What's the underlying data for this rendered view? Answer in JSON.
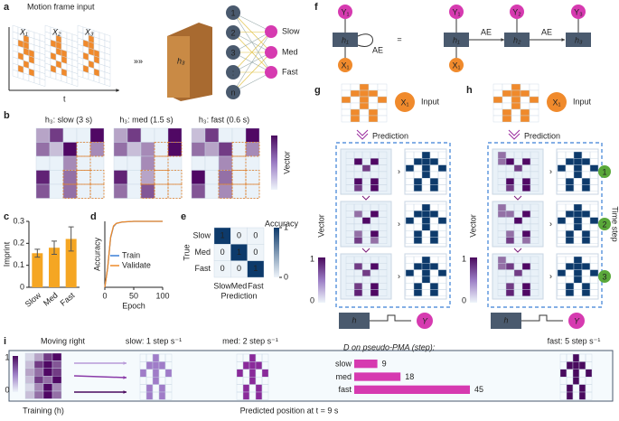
{
  "panels": {
    "a": {
      "label": "a",
      "title": "Motion frame input",
      "frames": [
        "X₁",
        "X₂",
        "X₃"
      ],
      "time_axis": "t",
      "hidden_state": "h₃",
      "nodes": [
        "1",
        "2",
        "3",
        ":",
        "n"
      ],
      "outputs": [
        "Slow",
        "Med",
        "Fast"
      ]
    },
    "b": {
      "label": "b",
      "titles": [
        "h₃: slow (3 s)",
        "h₃: med (1.5 s)",
        "h₃: fast (0.6 s)"
      ],
      "colorbar": "Vector"
    },
    "f": {
      "label": "f",
      "loop": {
        "output": "Y₁",
        "hidden": "h₁",
        "input": "X₁",
        "edge": "AE"
      },
      "equals": "=",
      "unrolled": {
        "outputs": [
          "Y₁",
          "Y₂",
          "Y₃"
        ],
        "hidden": [
          "h₁",
          "h₂",
          "h₃"
        ],
        "input": "X₁",
        "edges": [
          "AE",
          "AE"
        ]
      }
    },
    "g": {
      "label": "g",
      "input_symbol": "X₁",
      "input": "Input",
      "prediction": "Prediction",
      "colorbar": "Vector",
      "colorbar_ticks": [
        "1",
        "0"
      ],
      "readout": [
        "h",
        "Y"
      ]
    },
    "h": {
      "label": "h",
      "input_symbol": "X₁",
      "input": "Input",
      "prediction": "Prediction",
      "colorbar": "Vector",
      "colorbar_ticks": [
        "1",
        "0"
      ],
      "readout": [
        "h",
        "Y"
      ],
      "steps": [
        "1",
        "2",
        "3"
      ],
      "steps_label": "Time step"
    },
    "i": {
      "label": "i",
      "moving": "Moving right",
      "training": "Training (h)",
      "speeds": [
        "slow: 1 step s⁻¹",
        "med: 2 step s⁻¹",
        "fast: 5 step s⁻¹"
      ],
      "footer": "Predicted position at t = 9 s",
      "colorbar_ticks": [
        "1",
        "0"
      ]
    }
  },
  "chart_data": [
    {
      "type": "bar",
      "label": "c",
      "ylabel": "Imprint",
      "categories": [
        "Slow",
        "Med",
        "Fast"
      ],
      "values": [
        0.155,
        0.18,
        0.22
      ],
      "errors": [
        0.018,
        0.03,
        0.055
      ],
      "color": "#f5a623",
      "ylim": [
        0,
        0.3
      ],
      "yticks": [
        0,
        0.1,
        0.2,
        0.3
      ]
    },
    {
      "type": "line",
      "label": "d",
      "xlabel": "Epoch",
      "ylabel": "Accuracy",
      "x": [
        0,
        5,
        10,
        15,
        20,
        30,
        50,
        100
      ],
      "series": [
        {
          "name": "Train",
          "color": "#3a7fd5",
          "values": [
            0,
            0.3,
            0.75,
            0.92,
            0.97,
            0.99,
            1,
            1
          ]
        },
        {
          "name": "Validate",
          "color": "#ee8a2a",
          "values": [
            0,
            0.3,
            0.76,
            0.93,
            0.97,
            0.99,
            1,
            1
          ]
        }
      ],
      "xlim": [
        0,
        100
      ],
      "xticks": [
        0,
        50,
        100
      ],
      "ylim": [
        0,
        1
      ]
    },
    {
      "type": "heatmap",
      "label": "e",
      "ylabel": "True",
      "xlabel": "Prediction",
      "categories": [
        "Slow",
        "Med",
        "Fast"
      ],
      "values": [
        [
          1,
          0,
          0
        ],
        [
          0,
          1,
          0
        ],
        [
          0,
          0,
          1
        ]
      ],
      "colorbar_label": "Accuracy",
      "colorbar_ticks": [
        0,
        1
      ]
    },
    {
      "type": "bar",
      "orientation": "horizontal",
      "title": "D on pseudo-PMA (step):",
      "categories": [
        "slow",
        "med",
        "fast"
      ],
      "values": [
        9,
        18,
        45
      ],
      "color": "#d63ab0"
    }
  ]
}
